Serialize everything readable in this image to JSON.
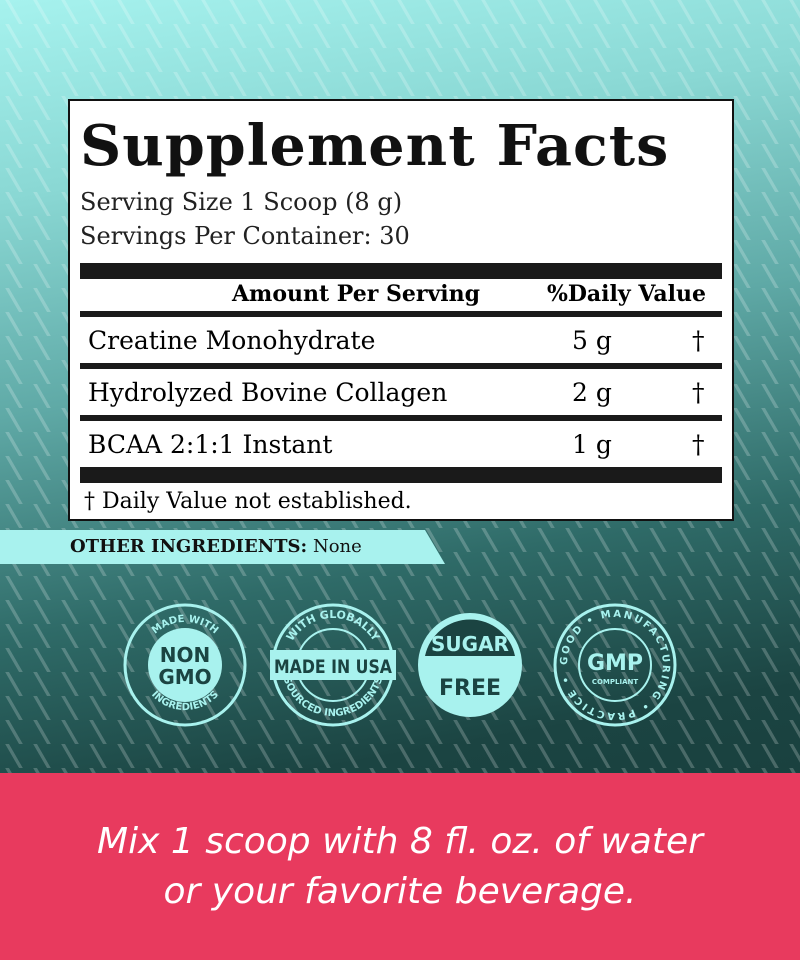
{
  "facts": {
    "title": "Supplement Facts",
    "serving_size": "Serving Size 1 Scoop (8 g)",
    "servings_per_container": "Servings Per Container: 30",
    "col_amount": "Amount Per Serving",
    "col_dv": "%Daily Value",
    "rows": [
      {
        "name": "Creatine Monohydrate",
        "amount": "5 g",
        "dv": "†"
      },
      {
        "name": "Hydrolyzed Bovine Collagen",
        "amount": "2 g",
        "dv": "†"
      },
      {
        "name": "BCAA 2:1:1 Instant",
        "amount": "1 g",
        "dv": "†"
      }
    ],
    "footnote": "† Daily Value not established."
  },
  "other": {
    "label": "OTHER INGREDIENTS:",
    "value": "None"
  },
  "badges": {
    "nongmo": {
      "top": "MADE WITH",
      "line1": "NON",
      "line2": "GMO",
      "bottom": "INGREDIENTS"
    },
    "usa": {
      "top": "WITH GLOBALLY",
      "main": "MADE IN USA",
      "bottom": "SOURCED INGREDIENTS"
    },
    "sugar": {
      "line1": "SUGAR",
      "line2": "FREE"
    },
    "gmp": {
      "ring": "GOOD • MANUFACTURING • PRACTICE •",
      "main": "GMP",
      "sub": "COMPLIANT"
    }
  },
  "directions": {
    "line1": "Mix 1 scoop with 8 fl. oz. of water",
    "line2": "or your favorite beverage."
  },
  "colors": {
    "accent": "#a8f2ee",
    "band": "#e83a5e",
    "teal": "#1b4442"
  }
}
